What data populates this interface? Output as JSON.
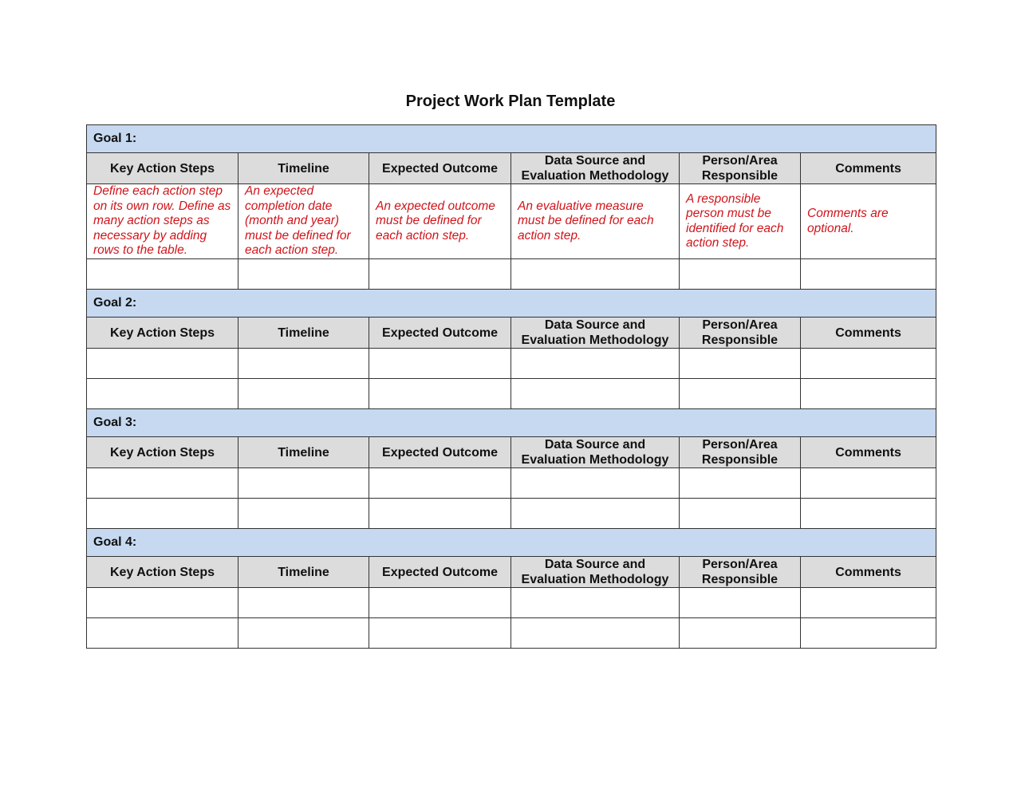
{
  "title": "Project Work Plan Template",
  "columns": [
    "Key Action Steps",
    "Timeline",
    "Expected Outcome",
    "Data Source and Evaluation Methodology",
    "Person/Area Responsible",
    "Comments"
  ],
  "colors": {
    "goal_band": "#c6d9f0",
    "header_band": "#dcdcdc",
    "instruction_text": "#d0141a"
  },
  "goals": [
    {
      "label": "Goal 1:",
      "rows": [
        [
          "Define each action step on its own row. Define as many action steps as necessary by adding rows to the table.",
          "An expected completion date (month and year) must be defined for each action step.",
          "An expected outcome must be defined for each action step.",
          "An evaluative measure must be defined for each action step.",
          "A responsible person must be identified for each action step.",
          "Comments are optional."
        ],
        [
          "",
          "",
          "",
          "",
          "",
          ""
        ]
      ]
    },
    {
      "label": "Goal 2:",
      "rows": [
        [
          "",
          "",
          "",
          "",
          "",
          ""
        ],
        [
          "",
          "",
          "",
          "",
          "",
          ""
        ]
      ]
    },
    {
      "label": "Goal 3:",
      "rows": [
        [
          "",
          "",
          "",
          "",
          "",
          ""
        ],
        [
          "",
          "",
          "",
          "",
          "",
          ""
        ]
      ]
    },
    {
      "label": "Goal 4:",
      "rows": [
        [
          "",
          "",
          "",
          "",
          "",
          ""
        ],
        [
          "",
          "",
          "",
          "",
          "",
          ""
        ]
      ]
    }
  ]
}
